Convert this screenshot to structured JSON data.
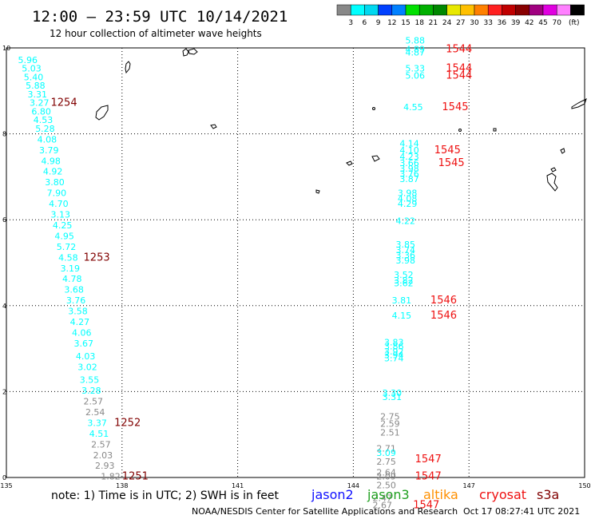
{
  "header": {
    "title": "12:00 – 23:59 UTC 10/14/2021",
    "subtitle": "12 hour collection of altimeter wave heights"
  },
  "color_scale": {
    "unit": "(ft)",
    "colors": [
      "#888888",
      "#00ffff",
      "#00d8f0",
      "#0040ff",
      "#0080ff",
      "#00e000",
      "#00b000",
      "#008800",
      "#e8e800",
      "#ffc000",
      "#ff8000",
      "#ff2020",
      "#c00000",
      "#880000",
      "#a00080",
      "#e000e0",
      "#ff80ff",
      "#000000"
    ],
    "labels": [
      "3",
      "6",
      "9",
      "12",
      "15",
      "18",
      "21",
      "24",
      "27",
      "30",
      "33",
      "36",
      "39",
      "42",
      "45",
      "70"
    ]
  },
  "footer": {
    "note": "note: 1) Time is in UTC; 2) SWH is in feet",
    "legend": [
      {
        "name": "jason2",
        "color": "#1010ff"
      },
      {
        "name": "jason3",
        "color": "#20a020"
      },
      {
        "name": "altika",
        "color": "#ff9000"
      },
      {
        "name": "cryosat",
        "color": "#ee1010"
      },
      {
        "name": "s3a",
        "color": "#800000"
      }
    ],
    "credit": "NOAA/NESDIS Center for Satellite Applications and Research",
    "generated": "Oct 17 08:27:41 UTC 2021"
  },
  "chart_data": {
    "type": "scatter",
    "title": "12:00 – 23:59 UTC 10/14/2021",
    "subtitle": "12 hour collection of altimeter wave heights",
    "xlim": [
      135,
      150
    ],
    "ylim": [
      0,
      10
    ],
    "x_ticks": [
      "135",
      "138",
      "141",
      "144",
      "147",
      "150"
    ],
    "y_ticks": [
      "0",
      "2",
      "4",
      "6",
      "8",
      "10"
    ],
    "grid": true,
    "legend_position": "bottom",
    "swh_labels": [
      {
        "x": 135.3,
        "y": 9.65,
        "v": "5.96",
        "c": "#00ffff"
      },
      {
        "x": 135.4,
        "y": 9.45,
        "v": "5.03",
        "c": "#00ffff"
      },
      {
        "x": 135.45,
        "y": 9.25,
        "v": "5.40",
        "c": "#00ffff"
      },
      {
        "x": 135.5,
        "y": 9.05,
        "v": "5.88",
        "c": "#00ffff"
      },
      {
        "x": 135.55,
        "y": 8.85,
        "v": "3.31",
        "c": "#00ffff"
      },
      {
        "x": 135.6,
        "y": 8.65,
        "v": "3.27",
        "c": "#00ffff"
      },
      {
        "x": 135.65,
        "y": 8.45,
        "v": "6.80",
        "c": "#00ffff"
      },
      {
        "x": 135.7,
        "y": 8.25,
        "v": "4.53",
        "c": "#00ffff"
      },
      {
        "x": 135.75,
        "y": 8.05,
        "v": "5.28",
        "c": "#00ffff"
      },
      {
        "x": 135.8,
        "y": 7.8,
        "v": "4.08",
        "c": "#00ffff"
      },
      {
        "x": 135.85,
        "y": 7.55,
        "v": "3.79",
        "c": "#00ffff"
      },
      {
        "x": 135.9,
        "y": 7.3,
        "v": "4.98",
        "c": "#00ffff"
      },
      {
        "x": 135.95,
        "y": 7.05,
        "v": "4.92",
        "c": "#00ffff"
      },
      {
        "x": 136.0,
        "y": 6.8,
        "v": "3.80",
        "c": "#00ffff"
      },
      {
        "x": 136.05,
        "y": 6.55,
        "v": "7.90",
        "c": "#00ffff"
      },
      {
        "x": 136.1,
        "y": 6.3,
        "v": "4.70",
        "c": "#00ffff"
      },
      {
        "x": 136.15,
        "y": 6.05,
        "v": "3.13",
        "c": "#00ffff"
      },
      {
        "x": 136.2,
        "y": 5.8,
        "v": "4.25",
        "c": "#00ffff"
      },
      {
        "x": 136.25,
        "y": 5.55,
        "v": "4.95",
        "c": "#00ffff"
      },
      {
        "x": 136.3,
        "y": 5.3,
        "v": "5.72",
        "c": "#00ffff"
      },
      {
        "x": 136.35,
        "y": 5.05,
        "v": "4.58",
        "c": "#00ffff"
      },
      {
        "x": 136.4,
        "y": 4.8,
        "v": "3.19",
        "c": "#00ffff"
      },
      {
        "x": 136.45,
        "y": 4.55,
        "v": "4.78",
        "c": "#00ffff"
      },
      {
        "x": 136.5,
        "y": 4.3,
        "v": "3.68",
        "c": "#00ffff"
      },
      {
        "x": 136.55,
        "y": 4.05,
        "v": "3.76",
        "c": "#00ffff"
      },
      {
        "x": 136.6,
        "y": 3.8,
        "v": "3.58",
        "c": "#00ffff"
      },
      {
        "x": 136.65,
        "y": 3.55,
        "v": "4.27",
        "c": "#00ffff"
      },
      {
        "x": 136.7,
        "y": 3.3,
        "v": "4.06",
        "c": "#00ffff"
      },
      {
        "x": 136.75,
        "y": 3.05,
        "v": "3.67",
        "c": "#00ffff"
      },
      {
        "x": 136.8,
        "y": 2.75,
        "v": "4.03",
        "c": "#00ffff"
      },
      {
        "x": 136.85,
        "y": 2.5,
        "v": "3.02",
        "c": "#00ffff"
      },
      {
        "x": 136.9,
        "y": 2.2,
        "v": "3.55",
        "c": "#00ffff"
      },
      {
        "x": 136.95,
        "y": 1.95,
        "v": "3.28",
        "c": "#00ffff"
      },
      {
        "x": 137.0,
        "y": 1.7,
        "v": "2.57",
        "c": "#888888"
      },
      {
        "x": 137.05,
        "y": 1.45,
        "v": "2.54",
        "c": "#888888"
      },
      {
        "x": 137.1,
        "y": 1.2,
        "v": "3.37",
        "c": "#00ffff"
      },
      {
        "x": 137.15,
        "y": 0.95,
        "v": "4.51",
        "c": "#00ffff"
      },
      {
        "x": 137.2,
        "y": 0.7,
        "v": "2.57",
        "c": "#888888"
      },
      {
        "x": 137.25,
        "y": 0.45,
        "v": "2.03",
        "c": "#888888"
      },
      {
        "x": 137.3,
        "y": 0.2,
        "v": "2.93",
        "c": "#888888"
      },
      {
        "x": 137.45,
        "y": -0.05,
        "v": "1.82",
        "c": "#888888"
      },
      {
        "x": 145.35,
        "y": 10.1,
        "v": "5.88",
        "c": "#00ffff"
      },
      {
        "x": 145.35,
        "y": 9.9,
        "v": "4.89",
        "c": "#00ffff"
      },
      {
        "x": 145.35,
        "y": 9.82,
        "v": "4.87",
        "c": "#00ffff"
      },
      {
        "x": 145.35,
        "y": 9.45,
        "v": "5.33",
        "c": "#00ffff"
      },
      {
        "x": 145.35,
        "y": 9.28,
        "v": "5.06",
        "c": "#00ffff"
      },
      {
        "x": 145.3,
        "y": 8.55,
        "v": "4.55",
        "c": "#00ffff"
      },
      {
        "x": 145.2,
        "y": 7.7,
        "v": "4.14",
        "c": "#00ffff"
      },
      {
        "x": 145.2,
        "y": 7.55,
        "v": "4.10",
        "c": "#00ffff"
      },
      {
        "x": 145.2,
        "y": 7.4,
        "v": "4.23",
        "c": "#00ffff"
      },
      {
        "x": 145.2,
        "y": 7.25,
        "v": "3.66",
        "c": "#00ffff"
      },
      {
        "x": 145.2,
        "y": 7.12,
        "v": "3.98",
        "c": "#00ffff"
      },
      {
        "x": 145.2,
        "y": 7.0,
        "v": "3.76",
        "c": "#00ffff"
      },
      {
        "x": 145.2,
        "y": 6.88,
        "v": "3.87",
        "c": "#00ffff"
      },
      {
        "x": 145.15,
        "y": 6.55,
        "v": "3.98",
        "c": "#00ffff"
      },
      {
        "x": 145.15,
        "y": 6.42,
        "v": "4.08",
        "c": "#00ffff"
      },
      {
        "x": 145.15,
        "y": 6.3,
        "v": "4.29",
        "c": "#00ffff"
      },
      {
        "x": 145.1,
        "y": 5.9,
        "v": "4.22",
        "c": "#00ffff"
      },
      {
        "x": 145.1,
        "y": 5.35,
        "v": "3.85",
        "c": "#00ffff"
      },
      {
        "x": 145.1,
        "y": 5.22,
        "v": "3.74",
        "c": "#00ffff"
      },
      {
        "x": 145.1,
        "y": 5.1,
        "v": "3.36",
        "c": "#00ffff"
      },
      {
        "x": 145.1,
        "y": 4.98,
        "v": "3.98",
        "c": "#00ffff"
      },
      {
        "x": 145.05,
        "y": 4.65,
        "v": "3.52",
        "c": "#00ffff"
      },
      {
        "x": 145.05,
        "y": 4.52,
        "v": "3.82",
        "c": "#00ffff"
      },
      {
        "x": 145.05,
        "y": 4.45,
        "v": "3.62",
        "c": "#00ffff"
      },
      {
        "x": 145.0,
        "y": 4.05,
        "v": "3.81",
        "c": "#00ffff"
      },
      {
        "x": 145.0,
        "y": 3.7,
        "v": "4.15",
        "c": "#00ffff"
      },
      {
        "x": 144.8,
        "y": 3.08,
        "v": "3.83",
        "c": "#00ffff"
      },
      {
        "x": 144.8,
        "y": 2.98,
        "v": "3.86",
        "c": "#00ffff"
      },
      {
        "x": 144.8,
        "y": 2.86,
        "v": "3.92",
        "c": "#00ffff"
      },
      {
        "x": 144.8,
        "y": 2.78,
        "v": "3.94",
        "c": "#00ffff"
      },
      {
        "x": 144.8,
        "y": 2.7,
        "v": "3.74",
        "c": "#00ffff"
      },
      {
        "x": 144.75,
        "y": 1.9,
        "v": "3.30",
        "c": "#00ffff"
      },
      {
        "x": 144.75,
        "y": 1.8,
        "v": "3.31",
        "c": "#00ffff"
      },
      {
        "x": 144.7,
        "y": 1.35,
        "v": "2.75",
        "c": "#888888"
      },
      {
        "x": 144.7,
        "y": 1.18,
        "v": "2.59",
        "c": "#888888"
      },
      {
        "x": 144.7,
        "y": 0.98,
        "v": "2.51",
        "c": "#888888"
      },
      {
        "x": 144.6,
        "y": 0.6,
        "v": "2.71",
        "c": "#888888"
      },
      {
        "x": 144.6,
        "y": 0.5,
        "v": "3.09",
        "c": "#00ffff"
      },
      {
        "x": 144.6,
        "y": 0.3,
        "v": "2.75",
        "c": "#888888"
      },
      {
        "x": 144.6,
        "y": 0.05,
        "v": "2.64",
        "c": "#888888"
      },
      {
        "x": 144.6,
        "y": -0.05,
        "v": "2.09",
        "c": "#888888"
      },
      {
        "x": 144.6,
        "y": -0.25,
        "v": "2.50",
        "c": "#888888"
      },
      {
        "x": 144.5,
        "y": -0.55,
        "v": "2.47",
        "c": "#888888"
      },
      {
        "x": 144.5,
        "y": -0.72,
        "v": "2.67",
        "c": "#888888"
      }
    ],
    "time_labels": [
      {
        "x": 136.15,
        "y": 8.65,
        "t": "1254",
        "c": "#800000"
      },
      {
        "x": 137.0,
        "y": 5.05,
        "t": "1253",
        "c": "#800000"
      },
      {
        "x": 137.8,
        "y": 1.2,
        "t": "1252",
        "c": "#800000"
      },
      {
        "x": 138.0,
        "y": -0.05,
        "t": "1251",
        "c": "#800000"
      },
      {
        "x": 146.4,
        "y": 9.9,
        "t": "1544",
        "c": "#ee1010"
      },
      {
        "x": 146.4,
        "y": 9.45,
        "t": "1544",
        "c": "#ee1010"
      },
      {
        "x": 146.4,
        "y": 9.28,
        "t": "1544",
        "c": "#ee1010"
      },
      {
        "x": 146.3,
        "y": 8.55,
        "t": "1545",
        "c": "#ee1010"
      },
      {
        "x": 146.1,
        "y": 7.55,
        "t": "1545",
        "c": "#ee1010"
      },
      {
        "x": 146.2,
        "y": 7.25,
        "t": "1545",
        "c": "#ee1010"
      },
      {
        "x": 146.0,
        "y": 4.05,
        "t": "1546",
        "c": "#ee1010"
      },
      {
        "x": 146.0,
        "y": 3.7,
        "t": "1546",
        "c": "#ee1010"
      },
      {
        "x": 145.6,
        "y": 0.35,
        "t": "1547",
        "c": "#ee1010"
      },
      {
        "x": 145.6,
        "y": -0.05,
        "t": "1547",
        "c": "#ee1010"
      },
      {
        "x": 145.55,
        "y": -0.72,
        "t": "1547",
        "c": "#ee1010"
      }
    ]
  }
}
